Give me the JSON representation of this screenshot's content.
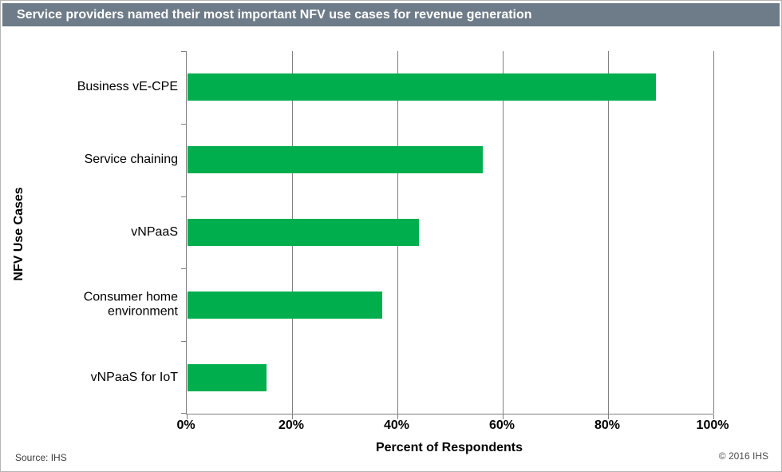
{
  "title": "Service providers named their most important NFV use cases for revenue generation",
  "footer": {
    "source": "Source: IHS",
    "copyright": "© 2016 IHS"
  },
  "colors": {
    "bar": "#00AE4D",
    "title_bar_bg": "#6E7B88",
    "gridline": "#808080",
    "axis": "#808080"
  },
  "chart_data": {
    "type": "bar",
    "orientation": "horizontal",
    "title": "Service providers named their most important NFV use cases for revenue generation",
    "categories": [
      "Business vE-CPE",
      "Service chaining",
      "vNPaaS",
      "Consumer home environment",
      "vNPaaS for IoT"
    ],
    "values": [
      89,
      56,
      44,
      37,
      15
    ],
    "unit": "%",
    "xlabel": "Percent of Respondents",
    "ylabel": "NFV Use Cases",
    "x_ticks": [
      "0%",
      "20%",
      "40%",
      "60%",
      "80%",
      "100%"
    ],
    "x_tick_values": [
      0,
      20,
      40,
      60,
      80,
      100
    ],
    "xlim": [
      0,
      100
    ],
    "grid": "vertical",
    "legend": "none"
  }
}
